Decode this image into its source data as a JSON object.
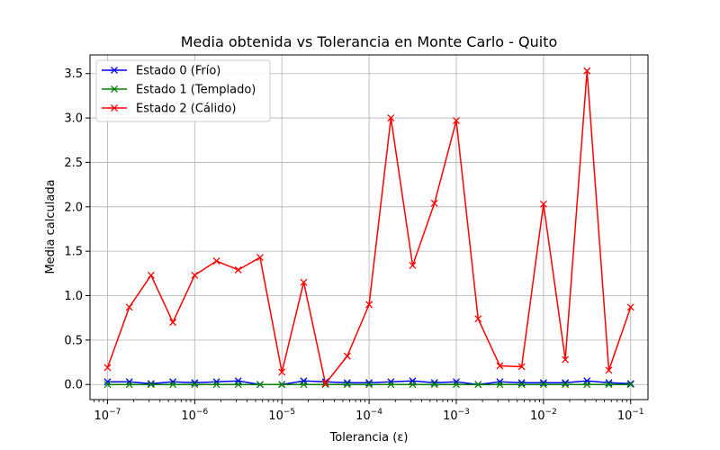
{
  "chart_data": {
    "type": "line",
    "title": "Media obtenida vs Tolerancia en Monte Carlo - Quito",
    "xlabel": "Tolerancia (ε)",
    "ylabel": "Media calculada",
    "x_scale": "log",
    "xlim": [
      6.3e-08,
      0.158
    ],
    "ylim": [
      -0.17,
      3.71
    ],
    "grid": true,
    "legend_position": "top-left",
    "x_ticks": [
      {
        "value": 1e-07,
        "base": "10",
        "exp": "−7"
      },
      {
        "value": 1e-06,
        "base": "10",
        "exp": "−6"
      },
      {
        "value": 1e-05,
        "base": "10",
        "exp": "−5"
      },
      {
        "value": 0.0001,
        "base": "10",
        "exp": "−4"
      },
      {
        "value": 0.001,
        "base": "10",
        "exp": "−3"
      },
      {
        "value": 0.01,
        "base": "10",
        "exp": "−2"
      },
      {
        "value": 0.1,
        "base": "10",
        "exp": "−1"
      }
    ],
    "y_ticks": [
      {
        "value": 0.0,
        "label": "0.0"
      },
      {
        "value": 0.5,
        "label": "0.5"
      },
      {
        "value": 1.0,
        "label": "1.0"
      },
      {
        "value": 1.5,
        "label": "1.5"
      },
      {
        "value": 2.0,
        "label": "2.0"
      },
      {
        "value": 2.5,
        "label": "2.5"
      },
      {
        "value": 3.0,
        "label": "3.0"
      },
      {
        "value": 3.5,
        "label": "3.5"
      }
    ],
    "x": [
      1e-07,
      1.78e-07,
      3.16e-07,
      5.62e-07,
      1e-06,
      1.78e-06,
      3.16e-06,
      5.62e-06,
      1e-05,
      1.78e-05,
      3.16e-05,
      5.62e-05,
      0.0001,
      0.000178,
      0.000316,
      0.000562,
      0.001,
      0.00178,
      0.00316,
      0.00562,
      0.01,
      0.0178,
      0.0316,
      0.0562,
      0.1
    ],
    "series": [
      {
        "name": "Estado 0 (Frío)",
        "color": "#0000ff",
        "values": [
          0.03,
          0.03,
          0.01,
          0.03,
          0.02,
          0.03,
          0.04,
          0.0,
          0.0,
          0.04,
          0.03,
          0.02,
          0.02,
          0.03,
          0.04,
          0.02,
          0.03,
          0.0,
          0.03,
          0.02,
          0.02,
          0.02,
          0.04,
          0.02,
          0.01
        ]
      },
      {
        "name": "Estado 1 (Templado)",
        "color": "#008000",
        "values": [
          0.0,
          0.0,
          0.0,
          0.0,
          0.0,
          0.0,
          0.0,
          0.0,
          0.0,
          0.0,
          0.0,
          0.0,
          0.0,
          0.0,
          0.0,
          0.0,
          0.0,
          0.0,
          0.0,
          0.0,
          0.0,
          0.0,
          0.0,
          0.0,
          0.0
        ]
      },
      {
        "name": "Estado 2 (Cálido)",
        "color": "#ff0000",
        "values": [
          0.19,
          0.87,
          1.23,
          0.7,
          1.23,
          1.39,
          1.29,
          1.43,
          0.14,
          1.15,
          0.01,
          0.32,
          0.9,
          3.0,
          1.34,
          2.04,
          2.97,
          0.74,
          0.21,
          0.2,
          2.03,
          0.28,
          3.53,
          0.16,
          0.87
        ]
      }
    ]
  }
}
